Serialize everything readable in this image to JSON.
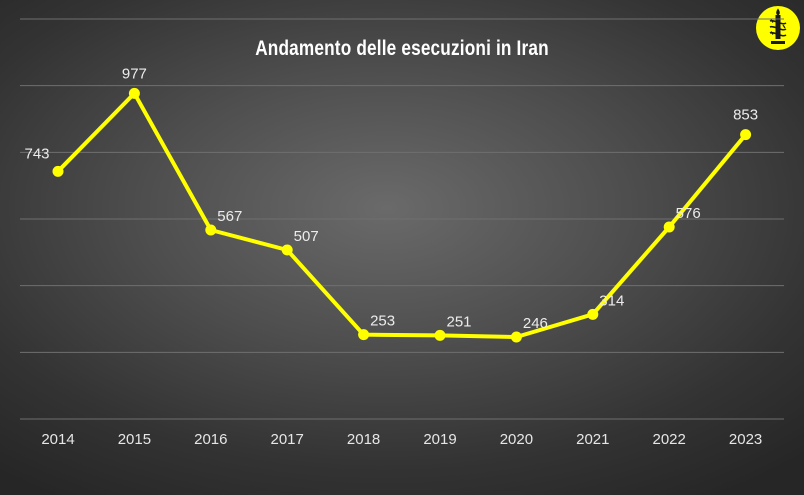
{
  "chart_data": {
    "type": "line",
    "title": "Andamento delle esecuzioni in Iran",
    "categories": [
      "2014",
      "2015",
      "2016",
      "2017",
      "2018",
      "2019",
      "2020",
      "2021",
      "2022",
      "2023"
    ],
    "series": [
      {
        "values": [
          743,
          977,
          567,
          507,
          253,
          251,
          246,
          314,
          576,
          853
        ],
        "color": "#ffff00"
      }
    ],
    "ylim": [
      0,
      1200
    ],
    "grid": true,
    "legend": "none",
    "xlabel": "",
    "ylabel": "",
    "data_labels": true
  },
  "colors": {
    "line": "#ffff00",
    "logo_background": "#ffff00",
    "logo_mark": "#1a1a1a",
    "gridline": "#6f6f6f"
  },
  "logo": {
    "icon": "candle-in-barbed-wire-icon"
  }
}
